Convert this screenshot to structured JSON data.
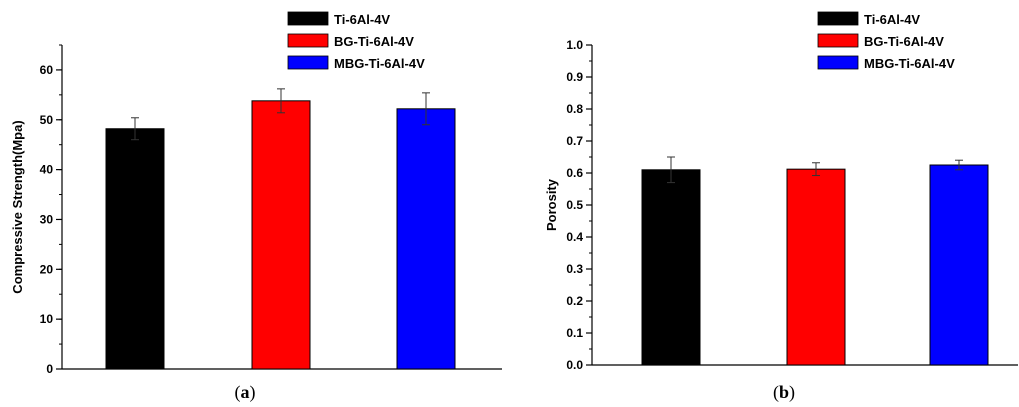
{
  "chart_data": [
    {
      "type": "bar",
      "categories": [
        "Ti-6Al-4V",
        "BG-Ti-6Al-4V",
        "MBG-Ti-6Al-4V"
      ],
      "values": [
        48.2,
        53.8,
        52.2
      ],
      "errors": [
        2.2,
        2.4,
        3.2
      ],
      "colors": [
        "#000000",
        "#ff0000",
        "#0000ff"
      ],
      "title": "",
      "xlabel": "",
      "ylabel": "Compressive Strength(Mpa)",
      "ylim": [
        0,
        65
      ],
      "yticks": [
        0,
        10,
        20,
        30,
        40,
        50,
        60
      ],
      "legend": [
        "Ti-6Al-4V",
        "BG-Ti-6Al-4V",
        "MBG-Ti-6Al-4V"
      ],
      "legend_position": "top-right",
      "grid": false,
      "caption_open": "(",
      "caption_letter": "a",
      "caption_close": ")"
    },
    {
      "type": "bar",
      "categories": [
        "Ti-6Al-4V",
        "BG-Ti-6Al-4V",
        "MBG-Ti-6Al-4V"
      ],
      "values": [
        0.61,
        0.612,
        0.625
      ],
      "errors": [
        0.04,
        0.02,
        0.015
      ],
      "colors": [
        "#000000",
        "#ff0000",
        "#0000ff"
      ],
      "title": "",
      "xlabel": "",
      "ylabel": "Porosity",
      "ylim": [
        0,
        1.0
      ],
      "yticks": [
        "0.0",
        "0.1",
        "0.2",
        "0.3",
        "0.4",
        "0.5",
        "0.6",
        "0.7",
        "0.8",
        "0.9",
        "1.0"
      ],
      "legend": [
        "Ti-6Al-4V",
        "BG-Ti-6Al-4V",
        "MBG-Ti-6Al-4V"
      ],
      "legend_position": "top-right",
      "grid": false,
      "caption_open": "(",
      "caption_letter": "b",
      "caption_close": ")"
    }
  ]
}
